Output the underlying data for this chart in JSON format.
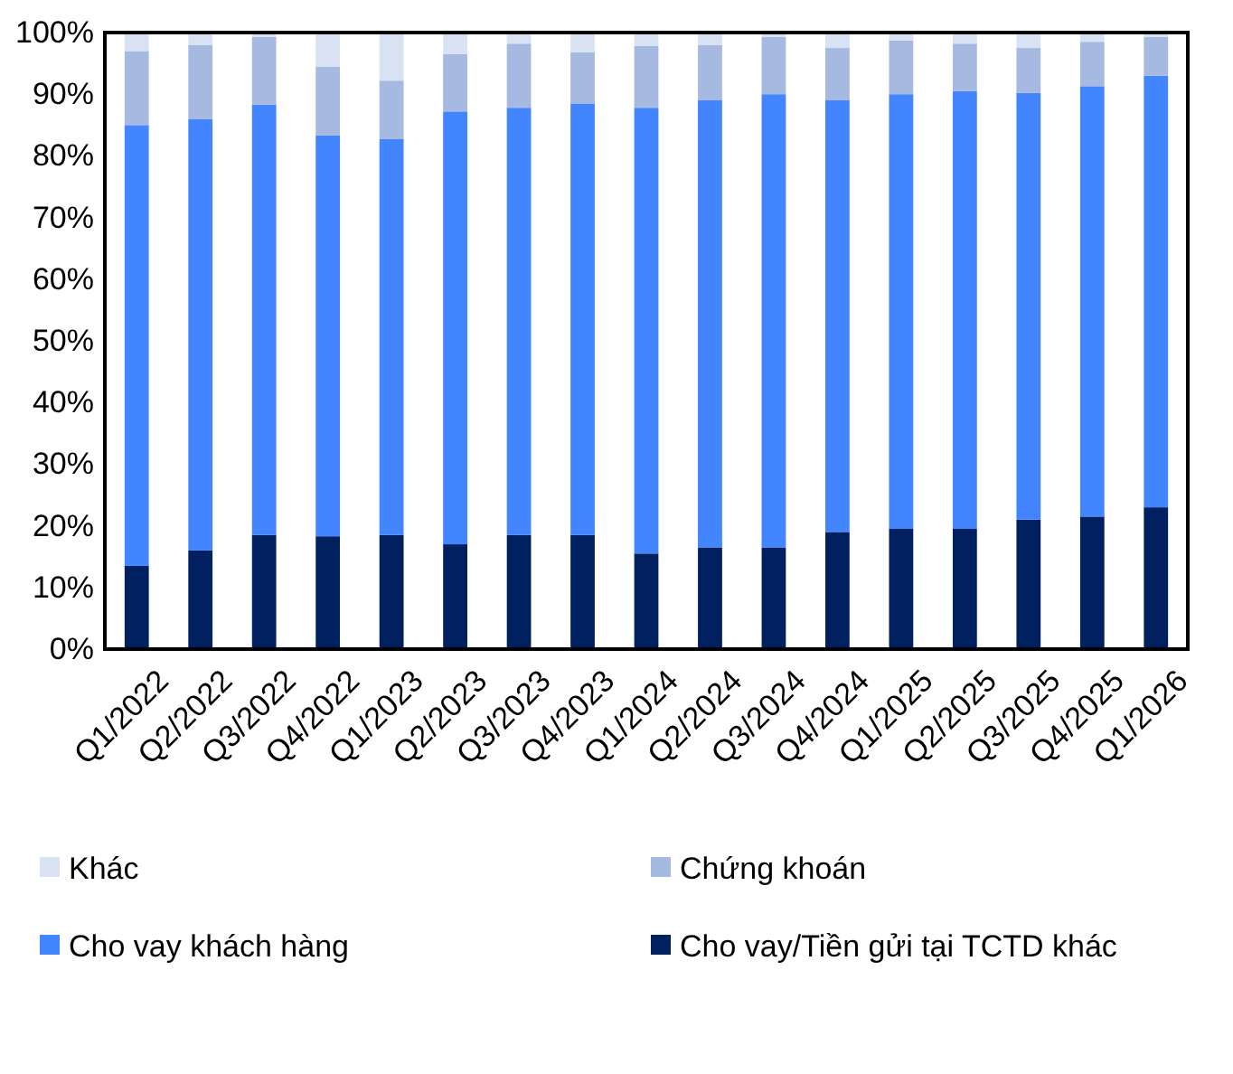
{
  "chart_data": {
    "type": "bar",
    "stacked": true,
    "categories": [
      "Q1/2022",
      "Q2/2022",
      "Q3/2022",
      "Q4/2022",
      "Q1/2023",
      "Q2/2023",
      "Q3/2023",
      "Q4/2023",
      "Q1/2024",
      "Q2/2024",
      "Q3/2024",
      "Q4/2024",
      "Q1/2025",
      "Q2/2025",
      "Q3/2025",
      "Q4/2025",
      "Q1/2026"
    ],
    "series": [
      {
        "name": "Cho vay/Tiền gửi tại TCTD khác",
        "color": "#002060",
        "values": [
          13.5,
          16,
          18.5,
          18.3,
          18.5,
          17,
          18.5,
          18.5,
          15.5,
          16.5,
          16.5,
          19,
          19.5,
          19.5,
          21,
          21.5,
          23
        ]
      },
      {
        "name": "Cho vay khách hàng",
        "color": "#4285ff",
        "values": [
          71.5,
          70,
          69.8,
          65,
          64.2,
          70.2,
          69.3,
          70,
          72.3,
          72.5,
          73.5,
          70,
          70.5,
          71,
          69.2,
          69.8,
          70
        ]
      },
      {
        "name": "Chứng khoán",
        "color": "#a6b9e0",
        "values": [
          12,
          12,
          11,
          11.2,
          9.5,
          9.3,
          10.4,
          8.3,
          10,
          9,
          9.3,
          8.5,
          8.7,
          7.7,
          7.3,
          7.2,
          6.3
        ]
      },
      {
        "name": "Khác",
        "color": "#d9e2f3",
        "values": [
          3,
          2,
          0.7,
          5.5,
          7.8,
          3.5,
          1.8,
          3.2,
          2.2,
          2,
          0.7,
          2.5,
          1.3,
          1.8,
          2.5,
          1.5,
          0.7
        ]
      }
    ],
    "ylim": [
      0,
      100
    ],
    "yticks": [
      {
        "value": 0,
        "label": "0%"
      },
      {
        "value": 10,
        "label": "10%"
      },
      {
        "value": 20,
        "label": "20%"
      },
      {
        "value": 30,
        "label": "30%"
      },
      {
        "value": 40,
        "label": "40%"
      },
      {
        "value": 50,
        "label": "50%"
      },
      {
        "value": 60,
        "label": "60%"
      },
      {
        "value": 70,
        "label": "70%"
      },
      {
        "value": 80,
        "label": "80%"
      },
      {
        "value": 90,
        "label": "90%"
      },
      {
        "value": 100,
        "label": "100%"
      }
    ],
    "legend": "bottom",
    "grid": false
  }
}
